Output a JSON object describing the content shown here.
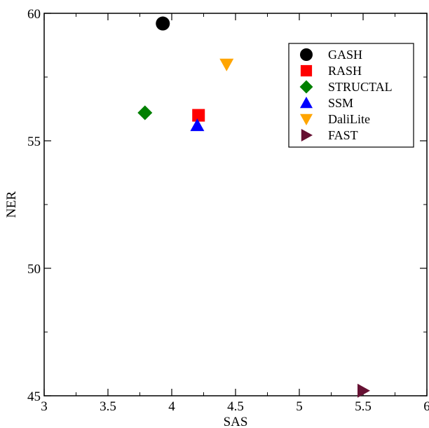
{
  "chart_data": {
    "type": "scatter",
    "title": "",
    "xlabel": "SAS",
    "ylabel": "NER",
    "xlim": [
      3,
      6
    ],
    "ylim": [
      45,
      60
    ],
    "x_ticks": [
      "3",
      "3.5",
      "4",
      "4.5",
      "5",
      "5.5",
      "6"
    ],
    "y_ticks": [
      "45",
      "50",
      "55",
      "60"
    ],
    "grid": false,
    "legend_position": "top-right",
    "series": [
      {
        "name": "GASH",
        "marker": "circle",
        "color": "#000000",
        "points": [
          {
            "x": 3.93,
            "y": 59.6
          }
        ]
      },
      {
        "name": "RASH",
        "marker": "square",
        "color": "#ff0000",
        "points": [
          {
            "x": 4.21,
            "y": 56.0
          }
        ]
      },
      {
        "name": "STRUCTAL",
        "marker": "diamond",
        "color": "#008000",
        "points": [
          {
            "x": 3.79,
            "y": 56.1
          }
        ]
      },
      {
        "name": "SSM",
        "marker": "triangle-up",
        "color": "#0000ff",
        "points": [
          {
            "x": 4.2,
            "y": 55.6
          }
        ]
      },
      {
        "name": "DaliLite",
        "marker": "triangle-down",
        "color": "#ffa500",
        "points": [
          {
            "x": 4.43,
            "y": 58.0
          }
        ]
      },
      {
        "name": "FAST",
        "marker": "triangle-right",
        "color": "#661133",
        "points": [
          {
            "x": 5.5,
            "y": 45.2
          }
        ]
      }
    ]
  }
}
